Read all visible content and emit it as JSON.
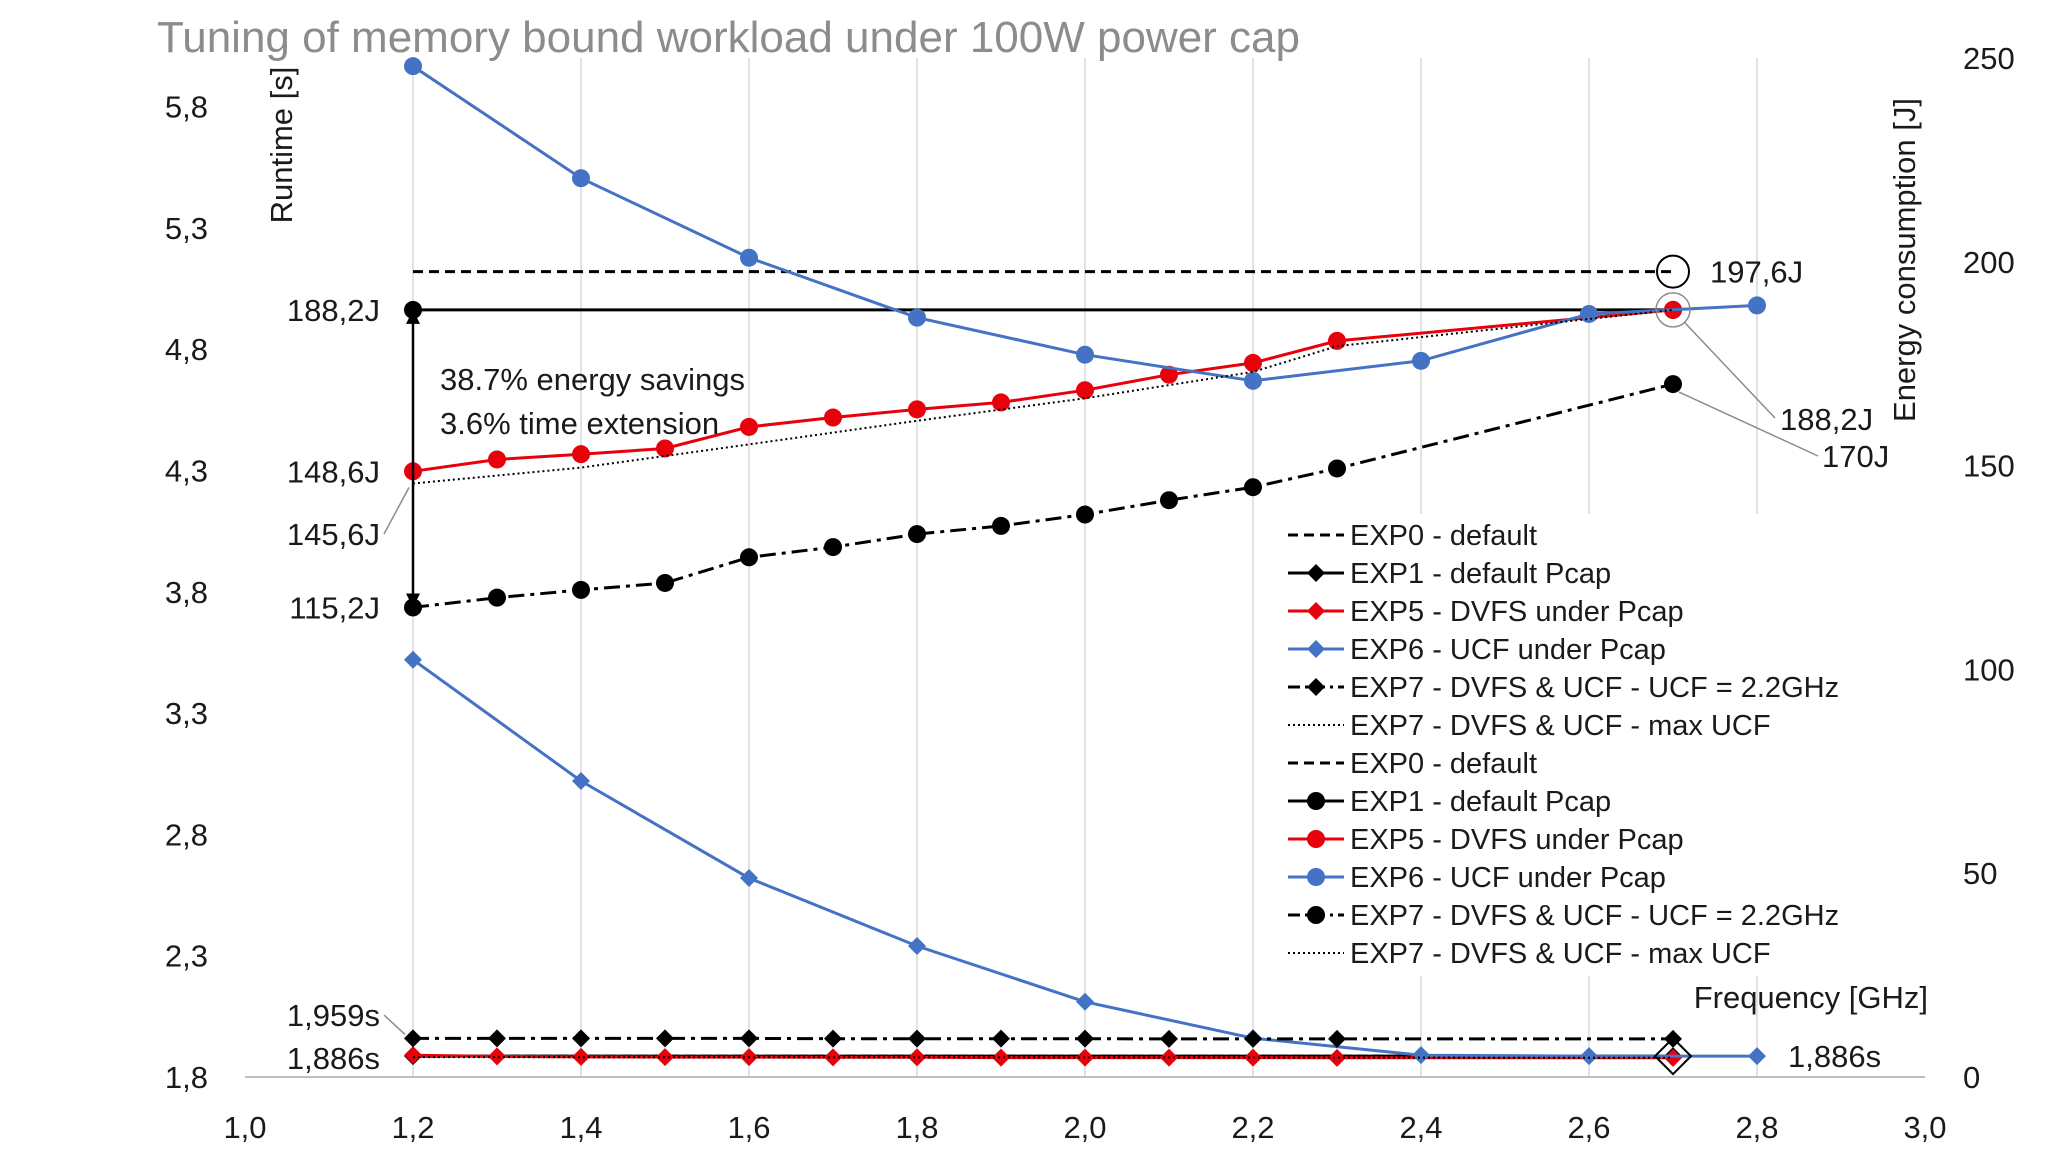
{
  "chart_data": {
    "type": "line",
    "title": "Tuning of memory bound workload under 100W power cap",
    "xlabel": "Frequency [GHz]",
    "ylabel": "Runtime [s]",
    "y2label": "Energy consumption [J]",
    "xlim": [
      1.0,
      3.0
    ],
    "ylim": [
      1.8,
      6.0
    ],
    "y2lim": [
      0,
      250
    ],
    "x_ticks": [
      "1,0",
      "1,2",
      "1,4",
      "1,6",
      "1,8",
      "2,0",
      "2,2",
      "2,4",
      "2,6",
      "2,8",
      "3,0"
    ],
    "y_ticks": [
      "1,8",
      "2,3",
      "2,8",
      "3,3",
      "3,8",
      "4,3",
      "4,8",
      "5,3",
      "5,8"
    ],
    "y2_ticks": [
      "0",
      "50",
      "100",
      "150",
      "200",
      "250"
    ],
    "grid": "vertical",
    "legend_position": "lower-right",
    "runtime_series": [
      {
        "name": "EXP0 - default",
        "color": "#000000",
        "dash": "dashed",
        "marker": "none",
        "points": [
          [
            1.2,
            1.886
          ],
          [
            2.7,
            1.886
          ]
        ]
      },
      {
        "name": "EXP1 - default Pcap",
        "color": "#000000",
        "dash": "solid",
        "marker": "diamond",
        "points": [
          [
            1.2,
            1.886
          ],
          [
            2.7,
            1.886
          ]
        ]
      },
      {
        "name": "EXP5 - DVFS under Pcap",
        "color": "#e8000b",
        "dash": "solid",
        "marker": "diamond",
        "points": [
          [
            1.2,
            1.89
          ],
          [
            1.3,
            1.885
          ],
          [
            1.4,
            1.883
          ],
          [
            1.5,
            1.882
          ],
          [
            1.6,
            1.882
          ],
          [
            1.7,
            1.881
          ],
          [
            1.8,
            1.881
          ],
          [
            1.9,
            1.88
          ],
          [
            2.0,
            1.88
          ],
          [
            2.1,
            1.88
          ],
          [
            2.2,
            1.88
          ],
          [
            2.3,
            1.879
          ],
          [
            2.7,
            1.879
          ]
        ]
      },
      {
        "name": "EXP6 - UCF under Pcap",
        "color": "#4472c4",
        "dash": "solid",
        "marker": "diamond",
        "points": [
          [
            1.2,
            3.52
          ],
          [
            1.4,
            3.02
          ],
          [
            1.6,
            2.62
          ],
          [
            1.8,
            2.34
          ],
          [
            2.0,
            2.11
          ],
          [
            2.2,
            1.96
          ],
          [
            2.4,
            1.89
          ],
          [
            2.6,
            1.886
          ],
          [
            2.8,
            1.886
          ]
        ]
      },
      {
        "name": "EXP7 - DVFS & UCF -  UCF = 2.2GHz",
        "color": "#000000",
        "dash": "dashdot",
        "marker": "diamond",
        "points": [
          [
            1.2,
            1.959
          ],
          [
            1.3,
            1.959
          ],
          [
            1.4,
            1.959
          ],
          [
            1.5,
            1.959
          ],
          [
            1.6,
            1.959
          ],
          [
            1.7,
            1.958
          ],
          [
            1.8,
            1.958
          ],
          [
            1.9,
            1.958
          ],
          [
            2.0,
            1.958
          ],
          [
            2.1,
            1.957
          ],
          [
            2.2,
            1.957
          ],
          [
            2.3,
            1.957
          ],
          [
            2.7,
            1.957
          ]
        ]
      },
      {
        "name": "EXP7 - DVFS & UCF -  max UCF",
        "color": "#000000",
        "dash": "dotted",
        "marker": "none",
        "points": [
          [
            1.2,
            1.882
          ],
          [
            2.7,
            1.879
          ]
        ]
      }
    ],
    "energy_series": [
      {
        "name": "EXP0 - default",
        "color": "#000000",
        "dash": "dashed",
        "marker": "none",
        "points": [
          [
            1.2,
            197.6
          ],
          [
            2.7,
            197.6
          ]
        ]
      },
      {
        "name": "EXP1 - default Pcap",
        "color": "#000000",
        "dash": "solid",
        "marker": "circle",
        "points": [
          [
            1.2,
            188.2
          ],
          [
            2.7,
            188.2
          ]
        ]
      },
      {
        "name": "EXP5 - DVFS under Pcap",
        "color": "#e8000b",
        "dash": "solid",
        "marker": "circle",
        "points": [
          [
            1.2,
            148.6
          ],
          [
            1.3,
            151.5
          ],
          [
            1.4,
            152.8
          ],
          [
            1.5,
            154.2
          ],
          [
            1.6,
            159.5
          ],
          [
            1.7,
            161.8
          ],
          [
            1.8,
            163.8
          ],
          [
            1.9,
            165.5
          ],
          [
            2.0,
            168.5
          ],
          [
            2.1,
            172.3
          ],
          [
            2.2,
            175.2
          ],
          [
            2.3,
            180.6
          ],
          [
            2.7,
            188.2
          ]
        ]
      },
      {
        "name": "EXP6 - UCF under Pcap",
        "color": "#4472c4",
        "dash": "solid",
        "marker": "circle",
        "points": [
          [
            1.2,
            248
          ],
          [
            1.4,
            220.5
          ],
          [
            1.6,
            201
          ],
          [
            1.8,
            186.3
          ],
          [
            2.0,
            177.2
          ],
          [
            2.2,
            170.8
          ],
          [
            2.4,
            175.7
          ],
          [
            2.6,
            187.2
          ],
          [
            2.8,
            189.3
          ]
        ]
      },
      {
        "name": "EXP7 - DVFS & UCF - UCF = 2.2GHz",
        "color": "#000000",
        "dash": "dashdot",
        "marker": "circle",
        "points": [
          [
            1.2,
            115.2
          ],
          [
            1.3,
            117.6
          ],
          [
            1.4,
            119.5
          ],
          [
            1.5,
            121.2
          ],
          [
            1.6,
            127.5
          ],
          [
            1.7,
            130
          ],
          [
            1.8,
            133.2
          ],
          [
            1.9,
            135.2
          ],
          [
            2.0,
            138
          ],
          [
            2.1,
            141.5
          ],
          [
            2.2,
            144.7
          ],
          [
            2.3,
            149.3
          ],
          [
            2.7,
            170
          ]
        ]
      },
      {
        "name": "EXP7 - DVFS & UCF -  max UCF",
        "color": "#000000",
        "dash": "dotted",
        "marker": "none",
        "points": [
          [
            1.2,
            145.6
          ],
          [
            1.4,
            149.5
          ],
          [
            1.6,
            155.2
          ],
          [
            1.8,
            161
          ],
          [
            2.0,
            166.5
          ],
          [
            2.2,
            173
          ],
          [
            2.3,
            179.3
          ],
          [
            2.7,
            188.2
          ]
        ]
      }
    ],
    "annotations": {
      "savings_line1": "38.7% energy savings",
      "savings_line2": "3.6% time extension",
      "left_labels": [
        "188,2J",
        "148,6J",
        "145,6J",
        "115,2J",
        "1,959s",
        "1,886s"
      ],
      "right_labels": [
        "197,6J",
        "188,2J",
        "170J",
        "1,886s"
      ]
    }
  }
}
